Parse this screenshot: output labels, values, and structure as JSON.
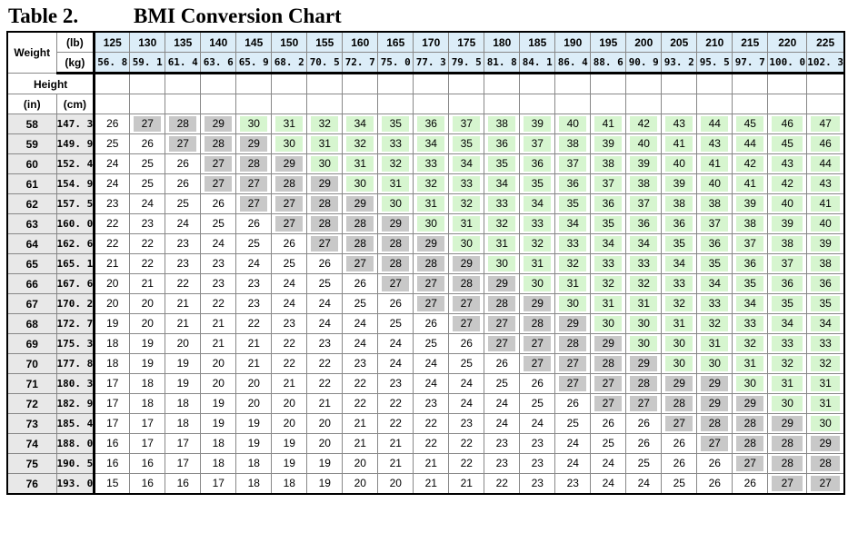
{
  "title": {
    "label": "Table 2.",
    "text": "BMI Conversion Chart"
  },
  "header": {
    "weight_label": "Weight",
    "lb_unit": "(lb)",
    "kg_unit": "(kg)",
    "height_label": "Height",
    "in_unit": "(in)",
    "cm_unit": "(cm)"
  },
  "weights_lb": [
    "125",
    "130",
    "135",
    "140",
    "145",
    "150",
    "155",
    "160",
    "165",
    "170",
    "175",
    "180",
    "185",
    "190",
    "195",
    "200",
    "205",
    "210",
    "215",
    "220",
    "225"
  ],
  "weights_kg": [
    "56. 8",
    "59. 1",
    "61. 4",
    "63. 6",
    "65. 9",
    "68. 2",
    "70. 5",
    "72. 7",
    "75. 0",
    "77. 3",
    "79. 5",
    "81. 8",
    "84. 1",
    "86. 4",
    "88. 6",
    "90. 9",
    "93. 2",
    "95. 5",
    "97. 7",
    "100. 0",
    "102. 3"
  ],
  "category_colors": {
    "normal": "#ffffff",
    "overweight": "#c8c8c8",
    "obese": "#d6f5cf"
  },
  "rows": [
    {
      "in": "58",
      "cm": "147. 3",
      "bmi": [
        "26",
        "27",
        "28",
        "29",
        "30",
        "31",
        "32",
        "34",
        "35",
        "36",
        "37",
        "38",
        "39",
        "40",
        "41",
        "42",
        "43",
        "44",
        "45",
        "46",
        "47"
      ]
    },
    {
      "in": "59",
      "cm": "149. 9",
      "bmi": [
        "25",
        "26",
        "27",
        "28",
        "29",
        "30",
        "31",
        "32",
        "33",
        "34",
        "35",
        "36",
        "37",
        "38",
        "39",
        "40",
        "41",
        "43",
        "44",
        "45",
        "46"
      ]
    },
    {
      "in": "60",
      "cm": "152. 4",
      "bmi": [
        "24",
        "25",
        "26",
        "27",
        "28",
        "29",
        "30",
        "31",
        "32",
        "33",
        "34",
        "35",
        "36",
        "37",
        "38",
        "39",
        "40",
        "41",
        "42",
        "43",
        "44"
      ]
    },
    {
      "in": "61",
      "cm": "154. 9",
      "bmi": [
        "24",
        "25",
        "26",
        "27",
        "27",
        "28",
        "29",
        "30",
        "31",
        "32",
        "33",
        "34",
        "35",
        "36",
        "37",
        "38",
        "39",
        "40",
        "41",
        "42",
        "43"
      ]
    },
    {
      "in": "62",
      "cm": "157. 5",
      "bmi": [
        "23",
        "24",
        "25",
        "26",
        "27",
        "27",
        "28",
        "29",
        "30",
        "31",
        "32",
        "33",
        "34",
        "35",
        "36",
        "37",
        "38",
        "38",
        "39",
        "40",
        "41"
      ]
    },
    {
      "in": "63",
      "cm": "160. 0",
      "bmi": [
        "22",
        "23",
        "24",
        "25",
        "26",
        "27",
        "28",
        "28",
        "29",
        "30",
        "31",
        "32",
        "33",
        "34",
        "35",
        "36",
        "36",
        "37",
        "38",
        "39",
        "40"
      ]
    },
    {
      "in": "64",
      "cm": "162. 6",
      "bmi": [
        "22",
        "22",
        "23",
        "24",
        "25",
        "26",
        "27",
        "28",
        "28",
        "29",
        "30",
        "31",
        "32",
        "33",
        "34",
        "34",
        "35",
        "36",
        "37",
        "38",
        "39"
      ]
    },
    {
      "in": "65",
      "cm": "165. 1",
      "bmi": [
        "21",
        "22",
        "23",
        "23",
        "24",
        "25",
        "26",
        "27",
        "28",
        "28",
        "29",
        "30",
        "31",
        "32",
        "33",
        "33",
        "34",
        "35",
        "36",
        "37",
        "38"
      ]
    },
    {
      "in": "66",
      "cm": "167. 6",
      "bmi": [
        "20",
        "21",
        "22",
        "23",
        "23",
        "24",
        "25",
        "26",
        "27",
        "27",
        "28",
        "29",
        "30",
        "31",
        "32",
        "32",
        "33",
        "34",
        "35",
        "36",
        "36"
      ]
    },
    {
      "in": "67",
      "cm": "170. 2",
      "bmi": [
        "20",
        "20",
        "21",
        "22",
        "23",
        "24",
        "24",
        "25",
        "26",
        "27",
        "27",
        "28",
        "29",
        "30",
        "31",
        "31",
        "32",
        "33",
        "34",
        "35",
        "35"
      ]
    },
    {
      "in": "68",
      "cm": "172. 7",
      "bmi": [
        "19",
        "20",
        "21",
        "21",
        "22",
        "23",
        "24",
        "24",
        "25",
        "26",
        "27",
        "27",
        "28",
        "29",
        "30",
        "30",
        "31",
        "32",
        "33",
        "34",
        "34"
      ]
    },
    {
      "in": "69",
      "cm": "175. 3",
      "bmi": [
        "18",
        "19",
        "20",
        "21",
        "21",
        "22",
        "23",
        "24",
        "24",
        "25",
        "26",
        "27",
        "27",
        "28",
        "29",
        "30",
        "30",
        "31",
        "32",
        "33",
        "33"
      ]
    },
    {
      "in": "70",
      "cm": "177. 8",
      "bmi": [
        "18",
        "19",
        "19",
        "20",
        "21",
        "22",
        "22",
        "23",
        "24",
        "24",
        "25",
        "26",
        "27",
        "27",
        "28",
        "29",
        "30",
        "30",
        "31",
        "32",
        "32"
      ]
    },
    {
      "in": "71",
      "cm": "180. 3",
      "bmi": [
        "17",
        "18",
        "19",
        "20",
        "20",
        "21",
        "22",
        "22",
        "23",
        "24",
        "24",
        "25",
        "26",
        "27",
        "27",
        "28",
        "29",
        "29",
        "30",
        "31",
        "31"
      ]
    },
    {
      "in": "72",
      "cm": "182. 9",
      "bmi": [
        "17",
        "18",
        "18",
        "19",
        "20",
        "20",
        "21",
        "22",
        "22",
        "23",
        "24",
        "24",
        "25",
        "26",
        "27",
        "27",
        "28",
        "29",
        "29",
        "30",
        "31"
      ]
    },
    {
      "in": "73",
      "cm": "185. 4",
      "bmi": [
        "17",
        "17",
        "18",
        "19",
        "19",
        "20",
        "20",
        "21",
        "22",
        "22",
        "23",
        "24",
        "24",
        "25",
        "26",
        "26",
        "27",
        "28",
        "28",
        "29",
        "30"
      ]
    },
    {
      "in": "74",
      "cm": "188. 0",
      "bmi": [
        "16",
        "17",
        "17",
        "18",
        "19",
        "19",
        "20",
        "21",
        "21",
        "22",
        "22",
        "23",
        "23",
        "24",
        "25",
        "26",
        "26",
        "27",
        "28",
        "28",
        "29"
      ]
    },
    {
      "in": "75",
      "cm": "190. 5",
      "bmi": [
        "16",
        "16",
        "17",
        "18",
        "18",
        "19",
        "19",
        "20",
        "21",
        "21",
        "22",
        "23",
        "23",
        "24",
        "24",
        "25",
        "26",
        "26",
        "27",
        "28",
        "28"
      ]
    },
    {
      "in": "76",
      "cm": "193. 0",
      "bmi": [
        "15",
        "16",
        "16",
        "17",
        "18",
        "18",
        "19",
        "20",
        "20",
        "21",
        "21",
        "22",
        "23",
        "23",
        "24",
        "24",
        "25",
        "26",
        "26",
        "27",
        "27"
      ]
    }
  ]
}
